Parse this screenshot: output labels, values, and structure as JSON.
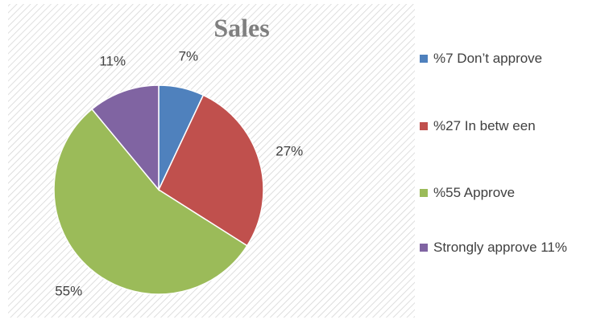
{
  "chart_data": {
    "type": "pie",
    "title": "Sales",
    "categories": [
      "%7 Don’t approve",
      "%27 In betw een",
      "%55 Approve",
      "Strongly approve 11%"
    ],
    "values": [
      7,
      27,
      55,
      11
    ],
    "value_labels": [
      "7%",
      "27%",
      "55%",
      "11%"
    ],
    "colors": [
      "#4f81bd",
      "#c0504d",
      "#9bbb59",
      "#8064a2"
    ]
  }
}
